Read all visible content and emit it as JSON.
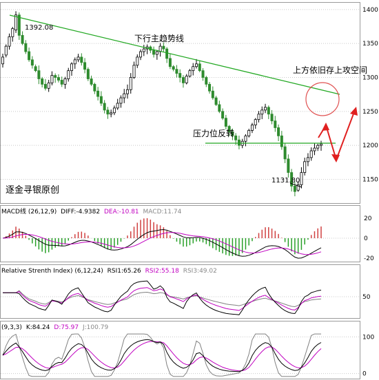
{
  "colors": {
    "up": "#000000",
    "up_fill": "#ffffff",
    "down": "#2e8b2e",
    "trendline": "#22a822",
    "support": "#22a822",
    "grid": "#c8c8c8",
    "circle": "#e05050",
    "arrow": "#e02020",
    "macd_dif": "#000000",
    "macd_dea": "#c000c0",
    "macd_hist_pos": "#d04040",
    "macd_hist_neg": "#28a028",
    "rsi1": "#000000",
    "rsi2": "#c000c0",
    "rsi3": "#808080",
    "kdj_k": "#000000",
    "kdj_d": "#c000c0",
    "kdj_j": "#808080"
  },
  "chart_data": [
    {
      "type": "candlestick",
      "title": "",
      "ylim": [
        1115,
        1410
      ],
      "yticks": [
        1150,
        1200,
        1250,
        1300,
        1350,
        1400
      ],
      "grid": true,
      "annotations": {
        "high_label": "1392.08",
        "low_label": "1131.80",
        "trend_label": "下行主趋势线",
        "circle_label": "上方依旧存上攻空间",
        "support_label": "压力位反转",
        "watermark": "逐金寻银原创"
      },
      "close": [
        1330,
        1346,
        1360,
        1372,
        1392,
        1362,
        1350,
        1338,
        1326,
        1318,
        1310,
        1298,
        1290,
        1284,
        1292,
        1303,
        1300,
        1296,
        1290,
        1298,
        1310,
        1320,
        1326,
        1330,
        1322,
        1312,
        1298,
        1290,
        1280,
        1272,
        1262,
        1252,
        1246,
        1248,
        1255,
        1262,
        1270,
        1276,
        1282,
        1300,
        1318,
        1330,
        1338,
        1342,
        1345,
        1340,
        1334,
        1338,
        1346,
        1342,
        1328,
        1316,
        1312,
        1306,
        1300,
        1292,
        1302,
        1310,
        1316,
        1320,
        1310,
        1300,
        1290,
        1280,
        1270,
        1260,
        1250,
        1240,
        1228,
        1220,
        1214,
        1208,
        1200,
        1206,
        1214,
        1222,
        1230,
        1238,
        1246,
        1252,
        1256,
        1246,
        1236,
        1226,
        1214,
        1198,
        1180,
        1160,
        1140,
        1132,
        1142,
        1160,
        1176,
        1182,
        1192,
        1196,
        1200,
        1202
      ],
      "open": [
        1320,
        1333,
        1346,
        1360,
        1370,
        1392,
        1362,
        1350,
        1338,
        1326,
        1316,
        1310,
        1298,
        1290,
        1284,
        1292,
        1303,
        1300,
        1296,
        1290,
        1298,
        1310,
        1320,
        1326,
        1330,
        1322,
        1312,
        1298,
        1290,
        1280,
        1272,
        1262,
        1252,
        1246,
        1248,
        1255,
        1262,
        1270,
        1276,
        1282,
        1300,
        1318,
        1330,
        1338,
        1342,
        1345,
        1340,
        1334,
        1338,
        1346,
        1342,
        1328,
        1316,
        1312,
        1306,
        1300,
        1292,
        1302,
        1310,
        1316,
        1320,
        1310,
        1300,
        1290,
        1280,
        1270,
        1260,
        1250,
        1240,
        1228,
        1220,
        1214,
        1208,
        1200,
        1206,
        1214,
        1222,
        1230,
        1238,
        1246,
        1252,
        1256,
        1246,
        1236,
        1226,
        1214,
        1198,
        1180,
        1160,
        1140,
        1134,
        1142,
        1160,
        1176,
        1182,
        1192,
        1196,
        1200
      ],
      "macd": {
        "label": "MACD线 (26,12,9)",
        "dif_label": "DIFF:-4.9382",
        "dea_label": "DEA:-10.81",
        "macd_label": "MACD:11.74",
        "ylim": [
          -22,
          22
        ],
        "yticks": [
          -20,
          0,
          20
        ]
      },
      "rsi": {
        "label": "Relative Strenth Index) (6,12,24)",
        "rsi1_label": "RSI1:65.26",
        "rsi2_label": "RSI2:55.18",
        "rsi3_label": "RSI3:49.02",
        "ylim": [
          0,
          100
        ],
        "yticks": [
          50
        ]
      },
      "kdj": {
        "label": "(9,3,3)",
        "k_label": "K:84.24",
        "d_label": "D:75.97",
        "j_label": "J:100.79",
        "ylim": [
          -10,
          110
        ],
        "yticks": [
          0,
          100
        ]
      }
    }
  ]
}
